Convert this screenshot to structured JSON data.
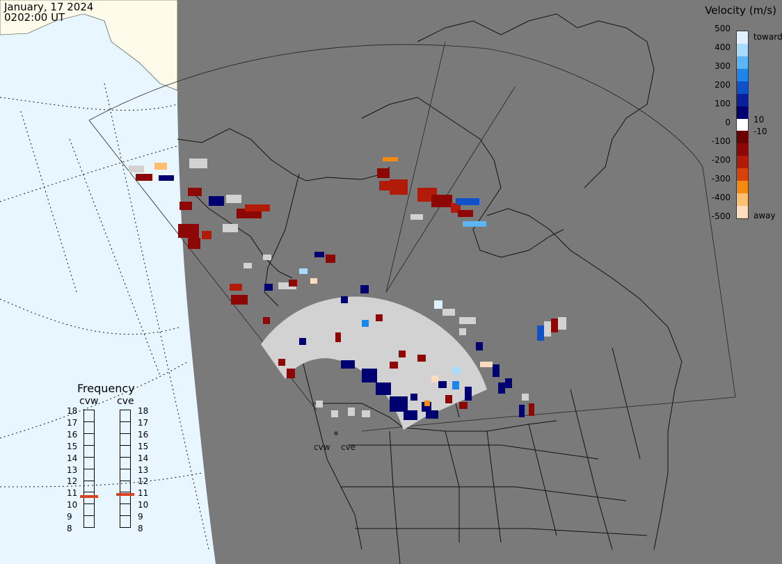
{
  "header": {
    "date": "January, 17 2024",
    "time": "0202:00 UT"
  },
  "colorbar": {
    "title": "Velocity (m/s)",
    "ticks": [
      "500",
      "400",
      "300",
      "200",
      "100",
      "10",
      "0",
      "-10",
      "-100",
      "-200",
      "-300",
      "-400",
      "-500"
    ],
    "toward_label": "toward",
    "away_label": "away",
    "colors": [
      "#dff1ff",
      "#a7dbff",
      "#5cb6f6",
      "#1e86e8",
      "#1050c8",
      "#0a1f9a",
      "#000070",
      "#ffffff",
      "#6a0000",
      "#8e0707",
      "#b11b07",
      "#d8430c",
      "#f58a10",
      "#ffbf70",
      "#ffdcbd"
    ]
  },
  "frequency": {
    "title": "Frequency",
    "radars": [
      {
        "code": "cvw",
        "value_mhz": 10.6
      },
      {
        "code": "cve",
        "value_mhz": 10.8
      }
    ],
    "scale": [
      "18",
      "17",
      "16",
      "15",
      "14",
      "13",
      "12",
      "11",
      "10",
      "9",
      "8"
    ],
    "marker_color": "#d9421e"
  },
  "map": {
    "site_labels": [
      "cvw",
      "cve"
    ],
    "ocean_color": "#e8f6ff",
    "night_color": "#7a7a7a",
    "day_land_color": "#fffbea",
    "scatter_gray": "#d2d2d2"
  }
}
